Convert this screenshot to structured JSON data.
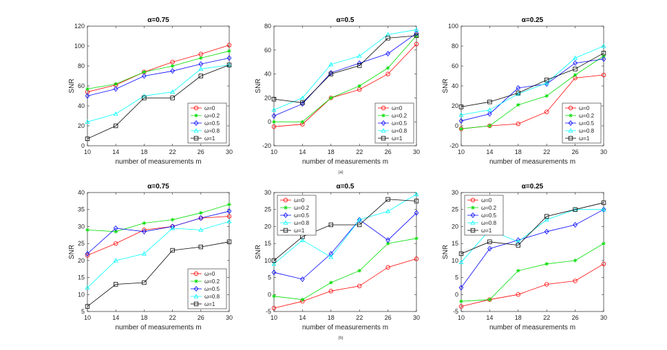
{
  "figure": {
    "row_captions": [
      "(a)",
      "(b)"
    ],
    "legend_symbol": "ω"
  },
  "chart_data": [
    {
      "type": "line",
      "title": "α=0.75",
      "xlabel": "number of measurements m",
      "ylabel": "SNR",
      "x": [
        10,
        14,
        18,
        22,
        26,
        30
      ],
      "xlim": [
        10,
        30
      ],
      "ylim": [
        0,
        120
      ],
      "yticks": [
        0,
        20,
        40,
        60,
        80,
        100,
        120
      ],
      "legend_position": "bottom-right",
      "series": [
        {
          "name": "=0",
          "color": "#ff0000",
          "marker": "circle",
          "values": [
            54,
            61,
            74,
            84,
            92,
            101
          ]
        },
        {
          "name": "=0.2",
          "color": "#00dd00",
          "marker": "star",
          "values": [
            57,
            62,
            74,
            80,
            88,
            95
          ]
        },
        {
          "name": "=0.5",
          "color": "#0000ff",
          "marker": "diamond",
          "values": [
            50,
            57,
            70,
            75,
            82,
            88
          ]
        },
        {
          "name": "=0.8",
          "color": "#00ffff",
          "marker": "triangle",
          "values": [
            24,
            32,
            50,
            54,
            77,
            81
          ]
        },
        {
          "name": "=1",
          "color": "#000000",
          "marker": "square",
          "values": [
            7,
            20,
            48,
            48,
            70,
            81
          ]
        }
      ]
    },
    {
      "type": "line",
      "title": "α=0.5",
      "xlabel": "number of measurements m",
      "ylabel": "SNR",
      "x": [
        10,
        14,
        18,
        22,
        26,
        30
      ],
      "xlim": [
        10,
        30
      ],
      "ylim": [
        -20,
        80
      ],
      "yticks": [
        -20,
        0,
        20,
        40,
        60,
        80
      ],
      "legend_position": "bottom-right",
      "series": [
        {
          "name": "=0",
          "color": "#ff0000",
          "marker": "circle",
          "values": [
            -4,
            -2,
            20,
            27,
            40,
            65
          ]
        },
        {
          "name": "=0.2",
          "color": "#00dd00",
          "marker": "star",
          "values": [
            0,
            0,
            20,
            30,
            45,
            72
          ]
        },
        {
          "name": "=0.5",
          "color": "#0000ff",
          "marker": "diamond",
          "values": [
            5,
            15,
            41,
            49,
            57,
            74
          ]
        },
        {
          "name": "=0.8",
          "color": "#00ffff",
          "marker": "triangle",
          "values": [
            10,
            20,
            48,
            55,
            73,
            77
          ]
        },
        {
          "name": "=1",
          "color": "#000000",
          "marker": "square",
          "values": [
            19,
            16,
            40,
            47,
            70,
            72
          ]
        }
      ]
    },
    {
      "type": "line",
      "title": "α=0.25",
      "xlabel": "number of measurements m",
      "ylabel": "SNR",
      "x": [
        10,
        14,
        18,
        22,
        26,
        30
      ],
      "xlim": [
        10,
        30
      ],
      "ylim": [
        -20,
        100
      ],
      "yticks": [
        -20,
        0,
        20,
        40,
        60,
        80,
        100
      ],
      "legend_position": "bottom-right",
      "series": [
        {
          "name": "=0",
          "color": "#ff0000",
          "marker": "circle",
          "values": [
            -3,
            0,
            2,
            14,
            48,
            51
          ]
        },
        {
          "name": "=0.2",
          "color": "#00dd00",
          "marker": "star",
          "values": [
            -3,
            0,
            21,
            30,
            51,
            70
          ]
        },
        {
          "name": "=0.5",
          "color": "#0000ff",
          "marker": "diamond",
          "values": [
            5,
            12,
            38,
            42,
            63,
            67
          ]
        },
        {
          "name": "=0.8",
          "color": "#00ffff",
          "marker": "triangle",
          "values": [
            11,
            16,
            32,
            43,
            68,
            80
          ]
        },
        {
          "name": "=1",
          "color": "#000000",
          "marker": "square",
          "values": [
            19,
            24,
            33,
            46,
            57,
            73
          ]
        }
      ]
    },
    {
      "type": "line",
      "title": "α=0.75",
      "xlabel": "number of measurements m",
      "ylabel": "SNR",
      "x": [
        10,
        14,
        18,
        22,
        26,
        30
      ],
      "xlim": [
        10,
        30
      ],
      "ylim": [
        5,
        40
      ],
      "yticks": [
        5,
        10,
        15,
        20,
        25,
        30,
        35,
        40
      ],
      "legend_position": "bottom-right",
      "series": [
        {
          "name": "=0",
          "color": "#ff0000",
          "marker": "circle",
          "values": [
            21.5,
            25,
            29,
            30,
            32.5,
            33
          ]
        },
        {
          "name": "=0.2",
          "color": "#00dd00",
          "marker": "star",
          "values": [
            29,
            28.5,
            31,
            32,
            34,
            36.5
          ]
        },
        {
          "name": "=0.5",
          "color": "#0000ff",
          "marker": "diamond",
          "values": [
            22,
            29.5,
            28.5,
            30,
            32.5,
            34.5
          ]
        },
        {
          "name": "=0.8",
          "color": "#00ffff",
          "marker": "triangle",
          "values": [
            12,
            20,
            22,
            29.5,
            29,
            31.5
          ]
        },
        {
          "name": "=1",
          "color": "#000000",
          "marker": "square",
          "values": [
            6.5,
            13,
            13.5,
            23,
            24,
            25.5
          ]
        }
      ]
    },
    {
      "type": "line",
      "title": "α=0.5",
      "xlabel": "number of measurements m",
      "ylabel": "SNR",
      "x": [
        10,
        14,
        18,
        22,
        26,
        30
      ],
      "xlim": [
        10,
        30
      ],
      "ylim": [
        -5,
        30
      ],
      "yticks": [
        -5,
        0,
        5,
        10,
        15,
        20,
        25,
        30
      ],
      "legend_position": "top-left",
      "series": [
        {
          "name": "=0",
          "color": "#ff0000",
          "marker": "circle",
          "values": [
            -4,
            -2,
            1,
            2.5,
            8,
            10.5
          ]
        },
        {
          "name": "=0.2",
          "color": "#00dd00",
          "marker": "star",
          "values": [
            -0.5,
            -1.5,
            3.5,
            7,
            15,
            16.5
          ]
        },
        {
          "name": "=0.5",
          "color": "#0000ff",
          "marker": "diamond",
          "values": [
            6.5,
            4.5,
            12,
            22,
            16,
            24
          ]
        },
        {
          "name": "=0.8",
          "color": "#00ffff",
          "marker": "triangle",
          "values": [
            9,
            16,
            11,
            22,
            24.5,
            29.5
          ]
        },
        {
          "name": "=1",
          "color": "#000000",
          "marker": "square",
          "values": [
            10,
            17,
            20.5,
            20.5,
            28,
            27.5
          ]
        }
      ]
    },
    {
      "type": "line",
      "title": "α=0.25",
      "xlabel": "number of measurements m",
      "ylabel": "SNR",
      "x": [
        10,
        14,
        18,
        22,
        26,
        30
      ],
      "xlim": [
        10,
        30
      ],
      "ylim": [
        -5,
        30
      ],
      "yticks": [
        -5,
        0,
        5,
        10,
        15,
        20,
        25,
        30
      ],
      "legend_position": "top-left",
      "series": [
        {
          "name": "=0",
          "color": "#ff0000",
          "marker": "circle",
          "values": [
            -3.5,
            -1.5,
            0,
            3,
            4,
            9
          ]
        },
        {
          "name": "=0.2",
          "color": "#00dd00",
          "marker": "star",
          "values": [
            -2,
            -1.5,
            7,
            9,
            10,
            15
          ]
        },
        {
          "name": "=0.5",
          "color": "#0000ff",
          "marker": "diamond",
          "values": [
            2,
            13.5,
            16,
            18.5,
            20.5,
            25
          ]
        },
        {
          "name": "=0.8",
          "color": "#00ffff",
          "marker": "triangle",
          "values": [
            9.5,
            19,
            15.5,
            22,
            25,
            25
          ]
        },
        {
          "name": "=1",
          "color": "#000000",
          "marker": "square",
          "values": [
            12,
            15.5,
            14.5,
            23,
            25,
            27
          ]
        }
      ]
    }
  ]
}
